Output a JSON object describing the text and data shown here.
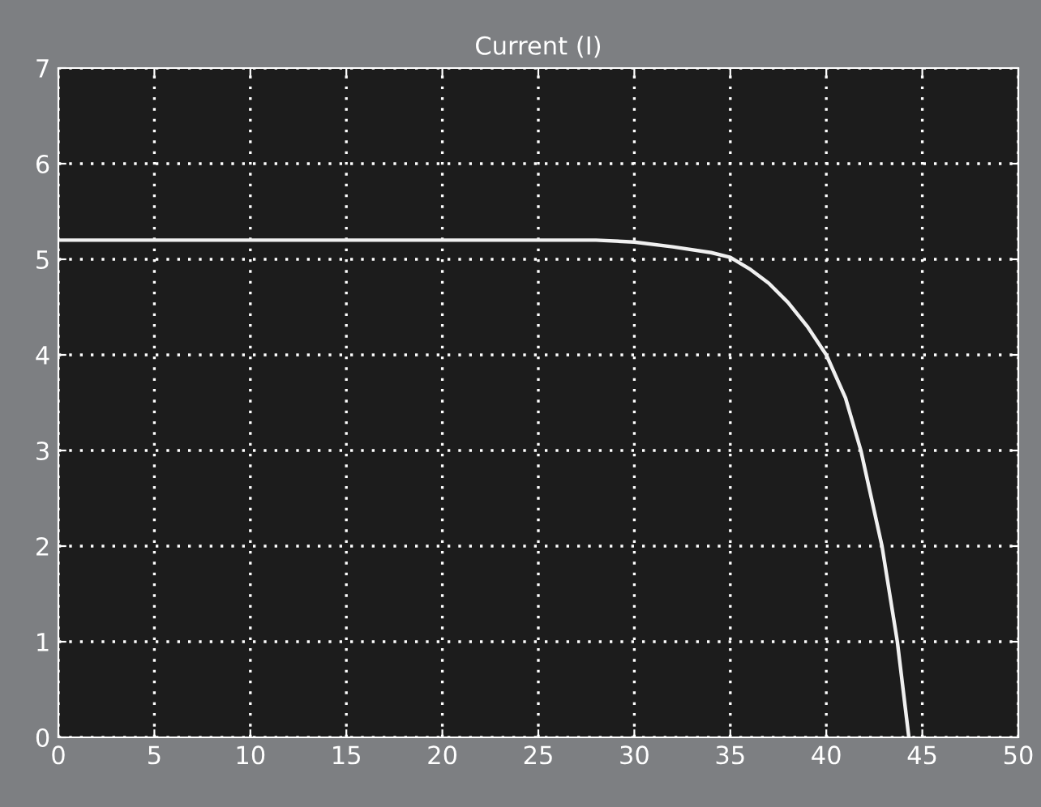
{
  "chart_data": {
    "type": "line",
    "title": "Current (I)",
    "x": [
      0,
      28,
      30,
      32,
      34,
      35,
      36,
      37,
      38,
      39,
      40,
      41,
      41.8,
      42.9,
      43.7,
      44.3
    ],
    "series": [
      {
        "color": "#f0f0f0",
        "values": [
          5.2,
          5.2,
          5.18,
          5.13,
          5.07,
          5.02,
          4.9,
          4.75,
          4.55,
          4.3,
          4.0,
          3.55,
          3.0,
          2.0,
          1.0,
          0
        ]
      }
    ],
    "xlim": [
      0,
      50
    ],
    "ylim": [
      0,
      7
    ],
    "xticks": [
      0,
      5,
      10,
      15,
      20,
      25,
      30,
      35,
      40,
      45,
      50
    ],
    "yticks": [
      0,
      1,
      2,
      3,
      4,
      5,
      6,
      7
    ],
    "grid": true,
    "marker": "none",
    "line_style": "solid",
    "legend": false
  }
}
